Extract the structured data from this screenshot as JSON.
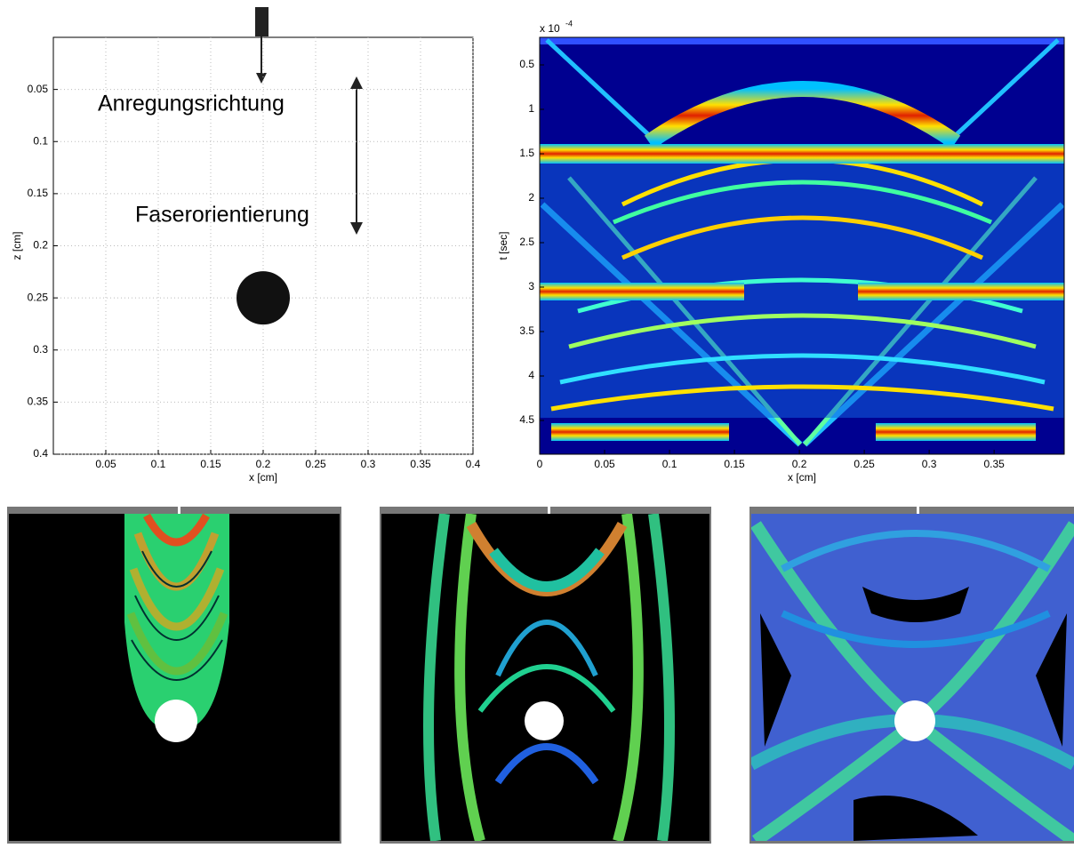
{
  "chart_data": [
    {
      "type": "scatter",
      "x": [
        0.2
      ],
      "values": [
        0.25
      ],
      "color": "#111111",
      "xlabel": "x [cm]",
      "ylabel": "z [cm]",
      "xlim": [
        0,
        0.4
      ],
      "ylim": [
        0,
        0.4
      ],
      "y_reversed": true,
      "xticks": [
        0.05,
        0.1,
        0.15,
        0.2,
        0.25,
        0.3,
        0.35,
        0.4
      ],
      "yticks": [
        0.05,
        0.1,
        0.15,
        0.2,
        0.25,
        0.3,
        0.35,
        0.4
      ],
      "grid": true,
      "annotations": [
        "Anregungsrichtung",
        "Faserorientierung"
      ]
    },
    {
      "type": "heatmap",
      "xlabel": "x [cm]",
      "ylabel": "t [sec]",
      "y_scale_label": "x 10",
      "y_scale_exponent": "-4",
      "xlim": [
        0,
        0.404
      ],
      "ylim": [
        0.19,
        4.88
      ],
      "y_reversed": true,
      "xticks": [
        0,
        0.05,
        0.1,
        0.15,
        0.2,
        0.25,
        0.3,
        0.35
      ],
      "yticks": [
        0.5,
        1,
        1.5,
        2,
        2.5,
        3,
        3.5,
        4,
        4.5
      ],
      "grid": false
    }
  ]
}
